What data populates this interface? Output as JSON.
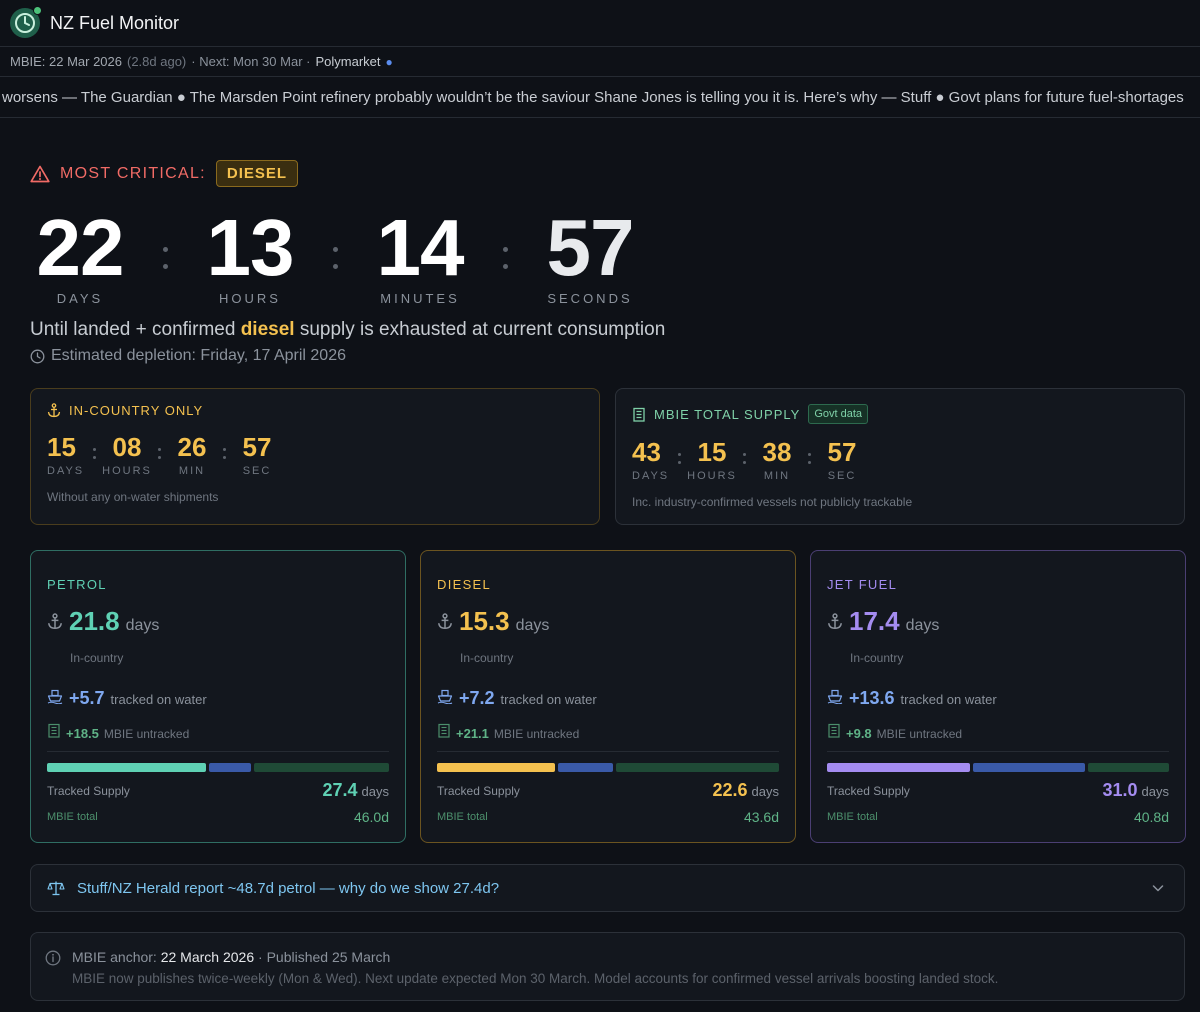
{
  "app": {
    "title": "NZ Fuel Monitor"
  },
  "meta": {
    "mbie_date": "MBIE: 22 Mar 2026",
    "ago": "(2.8d ago)",
    "next": "· Next: Mon 30 Mar ·",
    "polymarket": "Polymarket",
    "polymarket_dot": "●"
  },
  "ticker": {
    "text": "worsens — The Guardian ● The Marsden Point refinery probably wouldn’t be the saviour Shane Jones is telling you it is. Here’s why — Stuff ● Govt plans for future fuel-shortages"
  },
  "critical": {
    "label": "MOST CRITICAL:",
    "fuel": "DIESEL"
  },
  "countdown": {
    "days": "22",
    "hours": "13",
    "minutes": "14",
    "seconds": "57",
    "days_label": "DAYS",
    "hours_label": "HOURS",
    "minutes_label": "MINUTES",
    "seconds_label": "SECONDS"
  },
  "until": {
    "prefix": "Until landed + confirmed",
    "fuel": "diesel",
    "suffix": "supply is exhausted at current consumption"
  },
  "estimate": {
    "text": "Estimated depletion: Friday, 17 April 2026"
  },
  "in_country": {
    "title": "IN-COUNTRY ONLY",
    "days": "15",
    "hours": "08",
    "min": "26",
    "sec": "57",
    "days_label": "DAYS",
    "hours_label": "HOURS",
    "min_label": "MIN",
    "sec_label": "SEC",
    "note": "Without any on-water shipments"
  },
  "mbie_total": {
    "title": "MBIE TOTAL SUPPLY",
    "badge": "Govt data",
    "days": "43",
    "hours": "15",
    "min": "38",
    "sec": "57",
    "days_label": "DAYS",
    "hours_label": "HOURS",
    "min_label": "MIN",
    "sec_label": "SEC",
    "note": "Inc. industry-confirmed vessels not publicly trackable"
  },
  "fuels": [
    {
      "name": "PETROL",
      "days": "21.8",
      "days_unit": "days",
      "sub": "In-country",
      "water": "+5.7",
      "water_label": "tracked on water",
      "mbie": "+18.5",
      "mbie_label": "MBIE untracked",
      "tracked_label": "Tracked Supply",
      "tracked_days": "27.4",
      "tracked_unit": "days",
      "mbie_total_label": "MBIE total",
      "mbie_total": "46.0d",
      "bar": {
        "in_country": 21.8,
        "on_water": 5.7,
        "untracked": 18.5
      },
      "color": "#5fd1b4",
      "border": "#2f6e63"
    },
    {
      "name": "DIESEL",
      "days": "15.3",
      "days_unit": "days",
      "sub": "In-country",
      "water": "+7.2",
      "water_label": "tracked on water",
      "mbie": "+21.1",
      "mbie_label": "MBIE untracked",
      "tracked_label": "Tracked Supply",
      "tracked_days": "22.6",
      "tracked_unit": "days",
      "mbie_total_label": "MBIE total",
      "mbie_total": "43.6d",
      "bar": {
        "in_country": 15.3,
        "on_water": 7.2,
        "untracked": 21.1
      },
      "color": "#f4c14f",
      "border": "#6b5420"
    },
    {
      "name": "JET FUEL",
      "days": "17.4",
      "days_unit": "days",
      "sub": "In-country",
      "water": "+13.6",
      "water_label": "tracked on water",
      "mbie": "+9.8",
      "mbie_label": "MBIE untracked",
      "tracked_label": "Tracked Supply",
      "tracked_days": "31.0",
      "tracked_unit": "days",
      "mbie_total_label": "MBIE total",
      "mbie_total": "40.8d",
      "bar": {
        "in_country": 17.4,
        "on_water": 13.6,
        "untracked": 9.8
      },
      "color": "#a48cf0",
      "border": "#4b3f73"
    }
  ],
  "report": {
    "text": "Stuff/NZ Herald report ~48.7d petrol — why do we show 27.4d?"
  },
  "info": {
    "anchor_label": "MBIE anchor:",
    "anchor_date": "22 March 2026",
    "published": "· Published 25 March",
    "body": "MBIE now publishes twice-weekly (Mon & Wed). Next update expected Mon 30 March. Model accounts for confirmed vessel arrivals boosting landed stock."
  },
  "colors": {
    "accent_warn": "#f16b66",
    "diesel": "#f4c14f",
    "on_water": "#3a5aa8",
    "untracked": "#1f4a36"
  }
}
